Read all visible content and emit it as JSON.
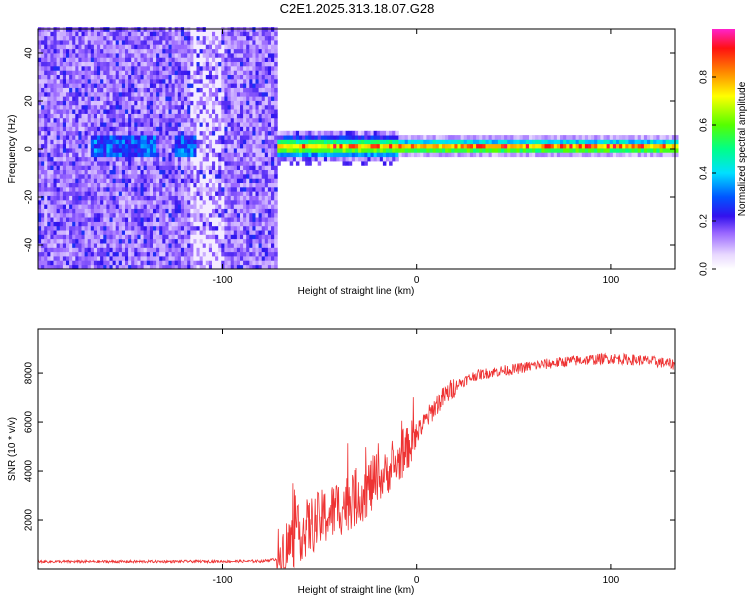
{
  "title": "C2E1.2025.313.18.07.G28",
  "colors": {
    "snr_line": "#ee3333",
    "background": "#ffffff",
    "colormap": [
      "#ffffff",
      "#e8d8ff",
      "#a070ff",
      "#6010e0",
      "#2040ff",
      "#00e0ff",
      "#20ff60",
      "#ffff00",
      "#ff2020",
      "#ff40ff"
    ]
  },
  "chart_data": [
    {
      "type": "heatmap",
      "title": "C2E1.2025.313.18.07.G28",
      "xlabel": "Height of straight line (km)",
      "ylabel": "Frequency (Hz)",
      "xlim": [
        -195,
        133
      ],
      "ylim": [
        -50,
        50
      ],
      "x_ticks": [
        -100,
        0,
        100
      ],
      "x_tick_labels": [
        "-100",
        "0",
        "100"
      ],
      "y_ticks": [
        -40,
        -20,
        0,
        20,
        40
      ],
      "y_tick_labels": [
        "-40",
        "-20",
        "0",
        "20",
        "40"
      ],
      "noise_region_x": [
        -195,
        -72
      ],
      "signal_line_frequency_hz": 0,
      "signal_x_range": [
        -76,
        133
      ],
      "colorbar": {
        "label": "Normalized spectral amplitude",
        "range": [
          0,
          1
        ],
        "ticks": [
          0,
          0.2,
          0.4,
          0.6,
          0.8
        ],
        "tick_labels": [
          "0.0",
          "0.2",
          "0.4",
          "0.6",
          "0.8"
        ]
      }
    },
    {
      "type": "line",
      "xlabel": "Height of straight line (km)",
      "ylabel": "SNR (10 * v/v)",
      "xlim": [
        -195,
        133
      ],
      "ylim": [
        0,
        9800
      ],
      "x_ticks": [
        -100,
        0,
        100
      ],
      "x_tick_labels": [
        "-100",
        "0",
        "100"
      ],
      "y_ticks": [
        2000,
        4000,
        6000,
        8000
      ],
      "y_tick_labels": [
        "2000",
        "4000",
        "6000",
        "8000"
      ],
      "series": [
        {
          "name": "SNR",
          "x": [
            -195,
            -150,
            -100,
            -80,
            -72,
            -66,
            -60,
            -50,
            -40,
            -30,
            -20,
            -10,
            0,
            10,
            20,
            30,
            40,
            50,
            60,
            70,
            80,
            90,
            100,
            110,
            120,
            133
          ],
          "y": [
            300,
            300,
            310,
            320,
            400,
            1000,
            1500,
            2000,
            2500,
            3000,
            3600,
            4300,
            5500,
            6700,
            7500,
            7900,
            8050,
            8150,
            8300,
            8400,
            8500,
            8550,
            8600,
            8550,
            8500,
            8350
          ]
        }
      ]
    }
  ]
}
